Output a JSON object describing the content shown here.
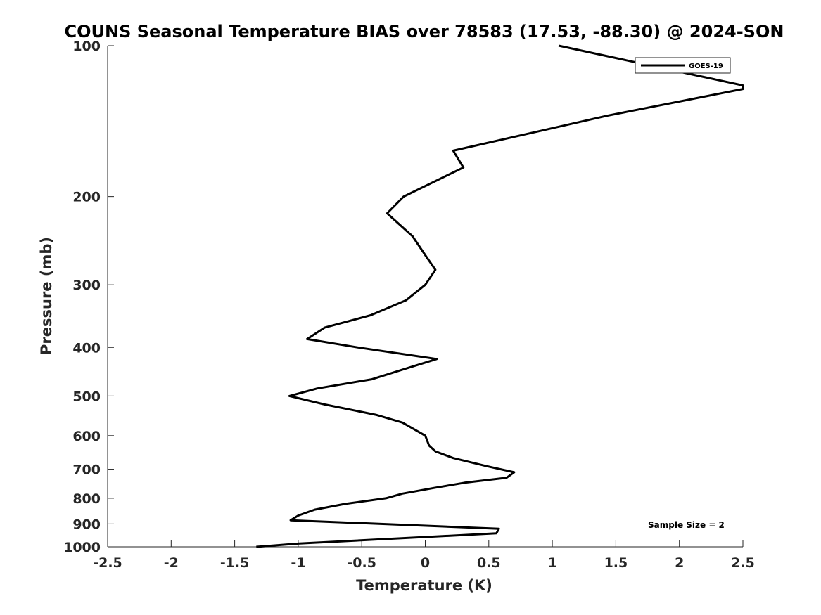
{
  "chart_data": {
    "type": "line",
    "title": "COUNS Seasonal Temperature BIAS over 78583 (17.53, -88.30) @ 2024-SON",
    "xlabel": "Temperature (K)",
    "ylabel": "Pressure (mb)",
    "xlim": [
      -2.5,
      2.5
    ],
    "ylim": [
      1000,
      100
    ],
    "yscale": "log",
    "xticks": [
      -2.5,
      -2,
      -1.5,
      -1,
      -0.5,
      0,
      0.5,
      1,
      1.5,
      2,
      2.5
    ],
    "xtick_labels": [
      "-2.5",
      "-2",
      "-1.5",
      "-1",
      "-0.5",
      "0",
      "0.5",
      "1",
      "1.5",
      "2",
      "2.5"
    ],
    "yticks": [
      100,
      200,
      300,
      400,
      500,
      600,
      700,
      800,
      900,
      1000
    ],
    "ytick_labels": [
      "100",
      "200",
      "300",
      "400",
      "500",
      "600",
      "700",
      "800",
      "900",
      "1000"
    ],
    "grid": false,
    "legend_position": "top-right",
    "annotation": "Sample Size = 2",
    "series": [
      {
        "name": "GOES-19",
        "color": "#000000",
        "points": [
          {
            "t": 1.05,
            "p": 100
          },
          {
            "t": 2.5,
            "p": 120
          },
          {
            "t": 2.5,
            "p": 122
          },
          {
            "t": 1.43,
            "p": 138
          },
          {
            "t": 0.22,
            "p": 162
          },
          {
            "t": 0.3,
            "p": 175
          },
          {
            "t": -0.17,
            "p": 200
          },
          {
            "t": -0.3,
            "p": 216
          },
          {
            "t": -0.1,
            "p": 240
          },
          {
            "t": 0.01,
            "p": 264
          },
          {
            "t": 0.08,
            "p": 280
          },
          {
            "t": 0.0,
            "p": 300
          },
          {
            "t": -0.15,
            "p": 322
          },
          {
            "t": -0.43,
            "p": 345
          },
          {
            "t": -0.79,
            "p": 365
          },
          {
            "t": -0.93,
            "p": 385
          },
          {
            "t": -0.53,
            "p": 400
          },
          {
            "t": 0.09,
            "p": 422
          },
          {
            "t": -0.18,
            "p": 443
          },
          {
            "t": -0.42,
            "p": 463
          },
          {
            "t": -0.85,
            "p": 483
          },
          {
            "t": -1.07,
            "p": 500
          },
          {
            "t": -0.79,
            "p": 520
          },
          {
            "t": -0.39,
            "p": 545
          },
          {
            "t": -0.18,
            "p": 565
          },
          {
            "t": 0.0,
            "p": 600
          },
          {
            "t": 0.03,
            "p": 628
          },
          {
            "t": 0.08,
            "p": 645
          },
          {
            "t": 0.22,
            "p": 665
          },
          {
            "t": 0.48,
            "p": 690
          },
          {
            "t": 0.7,
            "p": 710
          },
          {
            "t": 0.64,
            "p": 728
          },
          {
            "t": 0.31,
            "p": 745
          },
          {
            "t": 0.07,
            "p": 763
          },
          {
            "t": -0.18,
            "p": 783
          },
          {
            "t": -0.31,
            "p": 800
          },
          {
            "t": -0.63,
            "p": 821
          },
          {
            "t": -0.87,
            "p": 843
          },
          {
            "t": -1.0,
            "p": 866
          },
          {
            "t": -1.06,
            "p": 885
          },
          {
            "t": 0.58,
            "p": 920
          },
          {
            "t": 0.56,
            "p": 940
          },
          {
            "t": -0.99,
            "p": 985
          },
          {
            "t": -1.33,
            "p": 1000
          }
        ]
      }
    ]
  }
}
